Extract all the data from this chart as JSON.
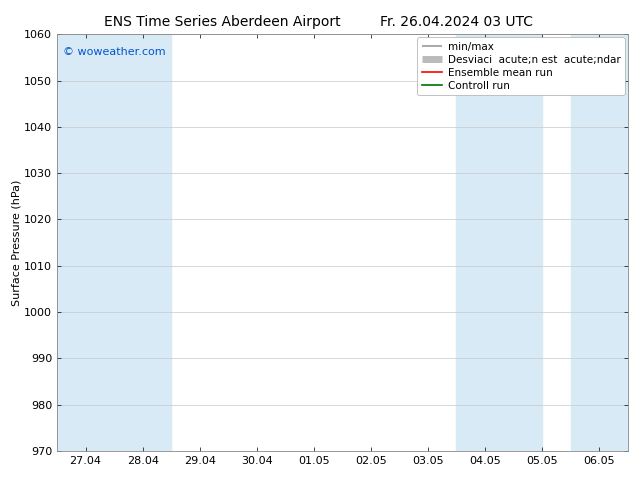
{
  "title_left": "ENS Time Series Aberdeen Airport",
  "title_right": "Fr. 26.04.2024 03 UTC",
  "ylabel": "Surface Pressure (hPa)",
  "watermark": "© woweather.com",
  "watermark_color": "#0055cc",
  "ylim": [
    970,
    1060
  ],
  "yticks": [
    970,
    980,
    990,
    1000,
    1010,
    1020,
    1030,
    1040,
    1050,
    1060
  ],
  "xtick_labels": [
    "27.04",
    "28.04",
    "29.04",
    "30.04",
    "01.05",
    "02.05",
    "03.05",
    "04.05",
    "05.05",
    "06.05"
  ],
  "xtick_positions": [
    0,
    1,
    2,
    3,
    4,
    5,
    6,
    7,
    8,
    9
  ],
  "xlim": [
    -0.5,
    9.5
  ],
  "shade_bands": [
    {
      "x_start": -0.5,
      "x_end": 1.5,
      "color": "#d9eaf7"
    },
    {
      "x_start": 6.5,
      "x_end": 8.0,
      "color": "#d9eaf7"
    },
    {
      "x_start": 8.5,
      "x_end": 9.5,
      "color": "#d9eaf7"
    }
  ],
  "bg_color": "#ffffff",
  "plot_bg_color": "#ffffff",
  "grid_color": "#c8c8c8",
  "legend_label_minmax": "min/max",
  "legend_label_desv": "Desviaci  acute;n est  acute;ndar",
  "legend_label_ens": "Ensemble mean run",
  "legend_label_ctrl": "Controll run",
  "legend_color_minmax": "#999999",
  "legend_color_desv": "#bbbbbb",
  "legend_color_ens": "#ff0000",
  "legend_color_ctrl": "#007000",
  "title_fontsize": 10,
  "tick_fontsize": 8,
  "label_fontsize": 8,
  "legend_fontsize": 7.5,
  "watermark_fontsize": 8
}
